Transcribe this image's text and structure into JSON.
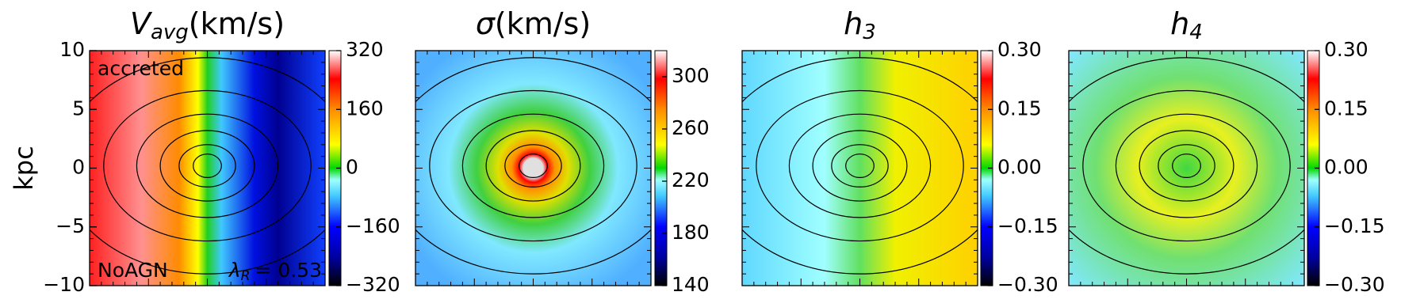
{
  "chart_data": [
    {
      "type": "heatmap",
      "title": {
        "symbol": "V",
        "subscript": "avg",
        "unit": "(km/s)"
      },
      "y_label": "kpc",
      "ylim": [
        -10,
        10
      ],
      "yticks": [
        10,
        5,
        0,
        {
          "value": -5,
          "label": "−5"
        },
        {
          "value": -10,
          "label": "−10"
        }
      ],
      "annotations": {
        "top_left": "accreted",
        "bottom_left": "NoAGN",
        "lambda": {
          "symbol": "λ",
          "subscript": "R",
          "text": "= 0.53"
        }
      },
      "colorbar": {
        "lim": [
          -320,
          320
        ],
        "ticks": [
          320,
          160,
          0,
          {
            "value": -160,
            "label": "−160"
          },
          {
            "value": -320,
            "label": "−320"
          }
        ]
      }
    },
    {
      "type": "heatmap",
      "title": {
        "symbol": "σ",
        "unit": "(km/s)"
      },
      "colorbar": {
        "lim": [
          140,
          320
        ],
        "ticks": [
          300,
          260,
          220,
          180,
          140
        ]
      }
    },
    {
      "type": "heatmap",
      "title": {
        "symbol": "h",
        "subscript": "3"
      },
      "colorbar": {
        "lim": [
          -0.3,
          0.3
        ],
        "ticks": [
          {
            "value": 0.3,
            "label": "0.30"
          },
          {
            "value": 0.15,
            "label": "0.15"
          },
          {
            "value": 0,
            "label": "0.00"
          },
          {
            "value": -0.15,
            "label": "−0.15"
          },
          {
            "value": -0.3,
            "label": "−0.30"
          }
        ]
      }
    },
    {
      "type": "heatmap",
      "title": {
        "symbol": "h",
        "subscript": "4"
      },
      "colorbar": {
        "lim": [
          -0.3,
          0.3
        ],
        "ticks": [
          {
            "value": 0.3,
            "label": "0.30"
          },
          {
            "value": 0.15,
            "label": "0.15"
          },
          {
            "value": 0,
            "label": "0.00"
          },
          {
            "value": -0.15,
            "label": "−0.15"
          },
          {
            "value": -0.3,
            "label": "−0.30"
          }
        ]
      }
    }
  ]
}
